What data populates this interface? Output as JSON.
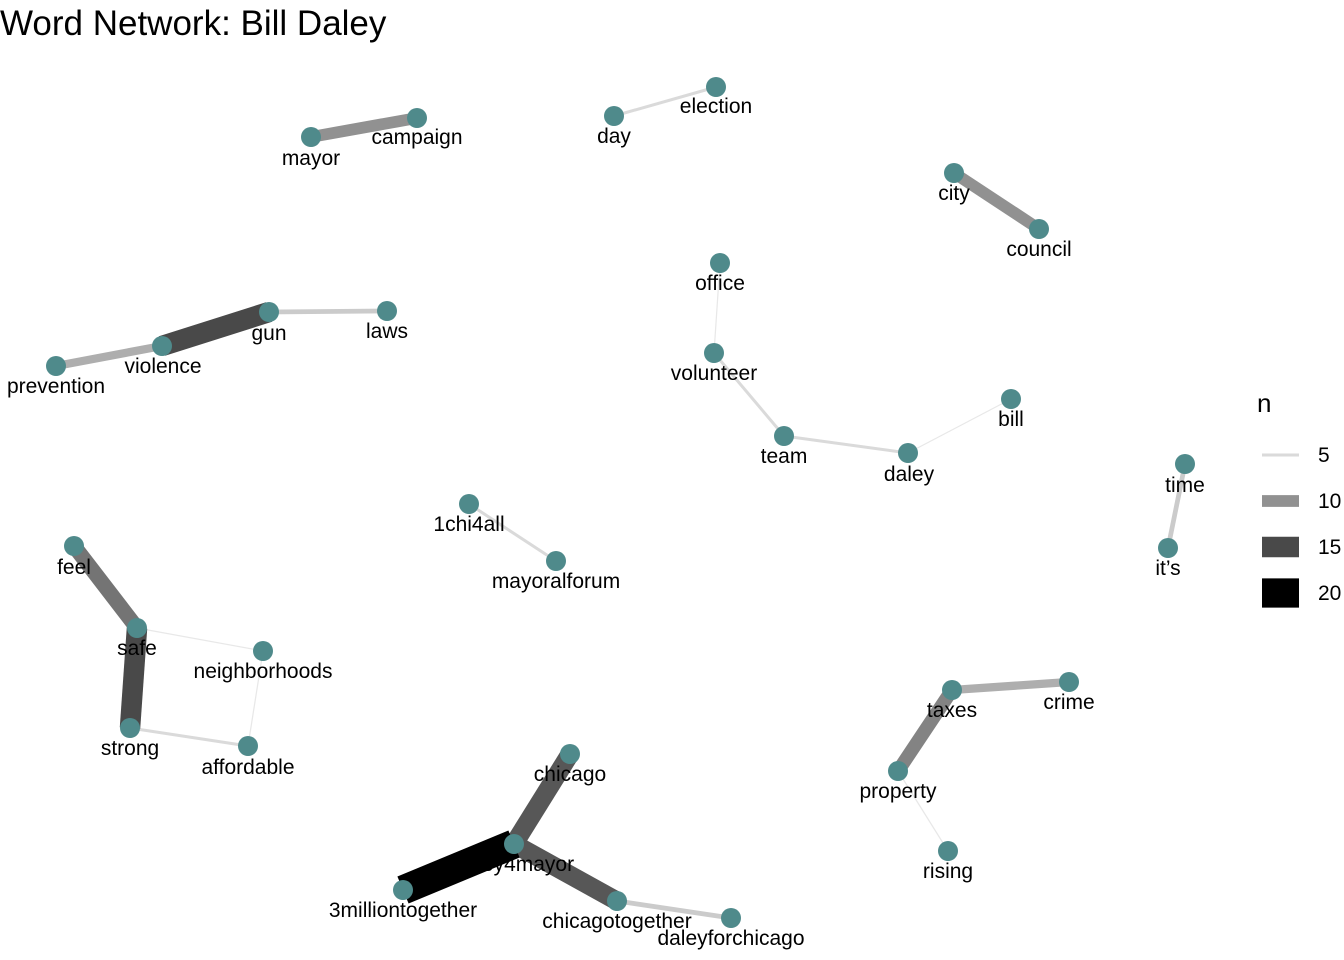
{
  "chart_data": {
    "type": "network",
    "title": "Word Network: Bill Daley",
    "node_color": "#4f8a8b",
    "nodes": [
      "mayor",
      "campaign",
      "day",
      "election",
      "city",
      "council",
      "gun",
      "laws",
      "violence",
      "prevention",
      "office",
      "volunteer",
      "team",
      "daley",
      "bill",
      "time",
      "it’s",
      "1chi4all",
      "mayoralforum",
      "feel",
      "safe",
      "neighborhoods",
      "strong",
      "affordable",
      "taxes",
      "crime",
      "property",
      "rising",
      "chicago",
      "daley4mayor",
      "3milliontogether",
      "chicagotogether",
      "daleyforchicago"
    ],
    "edges": [
      {
        "from": "mayor",
        "to": "campaign",
        "n": 10
      },
      {
        "from": "day",
        "to": "election",
        "n": 5
      },
      {
        "from": "city",
        "to": "council",
        "n": 10
      },
      {
        "from": "gun",
        "to": "violence",
        "n": 15
      },
      {
        "from": "gun",
        "to": "laws",
        "n": 6
      },
      {
        "from": "violence",
        "to": "prevention",
        "n": 8
      },
      {
        "from": "office",
        "to": "volunteer",
        "n": 4
      },
      {
        "from": "volunteer",
        "to": "team",
        "n": 5
      },
      {
        "from": "team",
        "to": "daley",
        "n": 5
      },
      {
        "from": "daley",
        "to": "bill",
        "n": 4
      },
      {
        "from": "time",
        "to": "it’s",
        "n": 6
      },
      {
        "from": "1chi4all",
        "to": "mayoralforum",
        "n": 5
      },
      {
        "from": "feel",
        "to": "safe",
        "n": 12
      },
      {
        "from": "safe",
        "to": "strong",
        "n": 15
      },
      {
        "from": "safe",
        "to": "neighborhoods",
        "n": 4
      },
      {
        "from": "neighborhoods",
        "to": "affordable",
        "n": 4
      },
      {
        "from": "strong",
        "to": "affordable",
        "n": 5
      },
      {
        "from": "taxes",
        "to": "crime",
        "n": 8
      },
      {
        "from": "taxes",
        "to": "property",
        "n": 11
      },
      {
        "from": "property",
        "to": "rising",
        "n": 4
      },
      {
        "from": "daley4mayor",
        "to": "chicago",
        "n": 14
      },
      {
        "from": "daley4mayor",
        "to": "3milliontogether",
        "n": 20
      },
      {
        "from": "daley4mayor",
        "to": "chicagotogether",
        "n": 14
      },
      {
        "from": "chicagotogether",
        "to": "daleyforchicago",
        "n": 6
      }
    ],
    "legend": {
      "title": "n",
      "position": "right",
      "entries": [
        {
          "label": "5",
          "n": 5
        },
        {
          "label": "10",
          "n": 10
        },
        {
          "label": "15",
          "n": 15
        },
        {
          "label": "20",
          "n": 20
        }
      ]
    }
  }
}
